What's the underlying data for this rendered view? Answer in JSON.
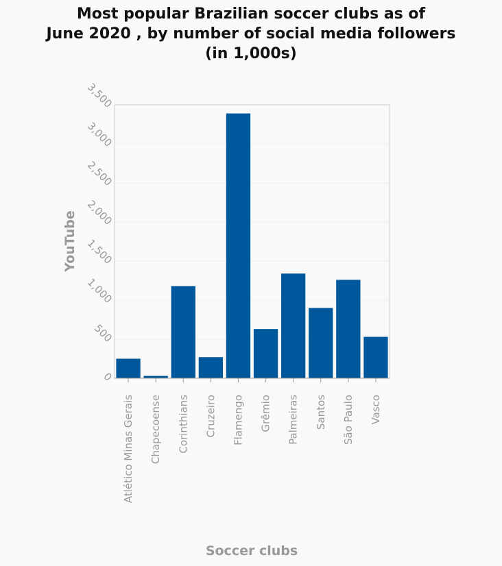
{
  "chart_data": {
    "type": "bar",
    "title_lines": [
      "Most popular Brazilian soccer clubs as of",
      "June 2020 , by number of social media followers",
      "(in 1,000s)"
    ],
    "xlabel": "Soccer clubs",
    "ylabel": "YouTube",
    "categories": [
      "Atlético Minas Gerais",
      "Chapecoense",
      "Corinthians",
      "Cruzeiro",
      "Flamengo",
      "Grêmio",
      "Palmeiras",
      "Santos",
      "São Paulo",
      "Vasco"
    ],
    "values": [
      250,
      30,
      1180,
      270,
      3390,
      630,
      1340,
      900,
      1260,
      530
    ],
    "ylim": [
      0,
      3500
    ],
    "yticks": [
      0,
      500,
      1000,
      1500,
      2000,
      2500,
      3000,
      3500
    ],
    "ytick_labels": [
      "0",
      "500",
      "1,000",
      "1,500",
      "2,000",
      "2,500",
      "3,000",
      "3,500"
    ],
    "grid": true,
    "colors": {
      "bar": "#00589c",
      "grid": "#eeeeee",
      "axis": "#cccccc",
      "text": "#999999"
    }
  }
}
